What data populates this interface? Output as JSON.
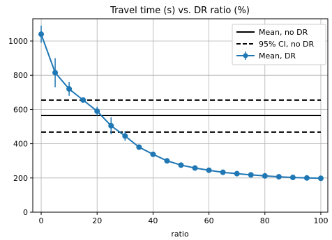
{
  "chart_data": {
    "type": "line",
    "title": "Travel time (s) vs. DR ratio (%)",
    "xlabel": "ratio",
    "ylabel": "",
    "xlim": [
      -3,
      102.5
    ],
    "ylim": [
      0,
      1130
    ],
    "x_ticks": [
      0,
      20,
      40,
      60,
      80,
      100
    ],
    "y_ticks": [
      0,
      200,
      400,
      600,
      800,
      1000
    ],
    "grid": true,
    "legend_position": "top-right",
    "colors": {
      "dr": "#1f77b4",
      "no_dr": "#000000"
    },
    "series": [
      {
        "name": "Mean, no DR",
        "style": "solid",
        "x": [
          0,
          100
        ],
        "values": [
          565,
          565
        ]
      },
      {
        "name": "95% CI, no DR",
        "style": "dashed",
        "x": [
          0,
          100
        ],
        "upper": [
          655,
          655
        ],
        "lower": [
          468,
          468
        ]
      },
      {
        "name": "Mean, DR",
        "style": "line-markers-errorbars",
        "x": [
          0,
          5,
          10,
          15,
          20,
          25,
          30,
          35,
          40,
          45,
          50,
          55,
          60,
          65,
          70,
          75,
          80,
          85,
          90,
          95,
          100
        ],
        "values": [
          1040,
          815,
          720,
          655,
          590,
          505,
          445,
          380,
          338,
          300,
          275,
          258,
          245,
          233,
          225,
          218,
          212,
          207,
          203,
          200,
          198
        ],
        "errors": [
          50,
          85,
          40,
          12,
          25,
          50,
          28,
          10,
          8,
          6,
          6,
          5,
          5,
          4,
          4,
          4,
          4,
          3,
          3,
          3,
          3
        ]
      }
    ]
  }
}
